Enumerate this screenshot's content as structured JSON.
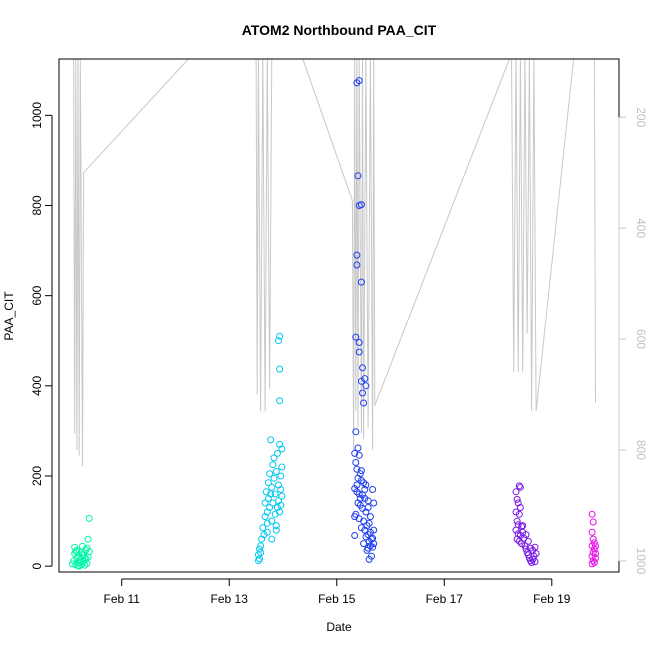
{
  "chart_data": {
    "type": "scatter",
    "title": "ATOM2 Northbound PAA_CIT",
    "xlabel": "Date",
    "ylabel": "PAA_CIT",
    "xlim": [
      "2018-02-09 20:00",
      "2018-02-20 06:00"
    ],
    "ylim": [
      -13,
      1125
    ],
    "x_ticks": [
      {
        "date": "2018-02-11",
        "label": "Feb 11"
      },
      {
        "date": "2018-02-13",
        "label": "Feb 13"
      },
      {
        "date": "2018-02-15",
        "label": "Feb 15"
      },
      {
        "date": "2018-02-17",
        "label": "Feb 17"
      },
      {
        "date": "2018-02-19",
        "label": "Feb 19"
      }
    ],
    "y_ticks": [
      0,
      200,
      400,
      600,
      800,
      1000
    ],
    "y2_ticks": [
      200,
      400,
      600,
      800,
      1000
    ],
    "y2lim_reversed": [
      1020,
      95
    ],
    "grid": false,
    "colors": {
      "axis": "#000000",
      "depth_line": "#c8c8c8",
      "depth_axis_text": "#c0c0c0"
    },
    "series": [
      {
        "color": "#00f5a8",
        "points": [
          [
            "2018-02-10 02:00",
            5
          ],
          [
            "2018-02-10 02:30",
            12
          ],
          [
            "2018-02-10 03:00",
            28
          ],
          [
            "2018-02-10 03:00",
            42
          ],
          [
            "2018-02-10 03:30",
            3
          ],
          [
            "2018-02-10 04:00",
            18
          ],
          [
            "2018-02-10 04:00",
            35
          ],
          [
            "2018-02-10 04:30",
            8
          ],
          [
            "2018-02-10 05:00",
            22
          ],
          [
            "2018-02-10 05:00",
            0
          ],
          [
            "2018-02-10 05:30",
            14
          ],
          [
            "2018-02-10 06:00",
            30
          ],
          [
            "2018-02-10 06:00",
            4
          ],
          [
            "2018-02-10 06:30",
            44
          ],
          [
            "2018-02-10 07:00",
            10
          ],
          [
            "2018-02-10 07:00",
            24
          ],
          [
            "2018-02-10 07:30",
            2
          ],
          [
            "2018-02-10 08:00",
            16
          ],
          [
            "2018-02-10 08:00",
            36
          ],
          [
            "2018-02-10 08:30",
            6
          ],
          [
            "2018-02-10 09:00",
            20
          ],
          [
            "2018-02-10 09:00",
            60
          ],
          [
            "2018-02-10 09:30",
            106
          ],
          [
            "2018-02-10 09:30",
            32
          ],
          [
            "2018-02-10 04:30",
            1
          ],
          [
            "2018-02-10 06:30",
            26
          ],
          [
            "2018-02-10 08:30",
            40
          ],
          [
            "2018-02-10 05:30",
            9
          ],
          [
            "2018-02-10 07:30",
            19
          ],
          [
            "2018-02-10 03:30",
            33
          ]
        ]
      },
      {
        "color": "#00c8f0",
        "points": [
          [
            "2018-02-13 13:00",
            12
          ],
          [
            "2018-02-13 13:00",
            25
          ],
          [
            "2018-02-13 13:30",
            38
          ],
          [
            "2018-02-13 13:30",
            16
          ],
          [
            "2018-02-13 14:00",
            45
          ],
          [
            "2018-02-13 14:00",
            30
          ],
          [
            "2018-02-13 14:30",
            60
          ],
          [
            "2018-02-13 15:00",
            85
          ],
          [
            "2018-02-13 15:30",
            70
          ],
          [
            "2018-02-13 16:00",
            110
          ],
          [
            "2018-02-13 16:00",
            140
          ],
          [
            "2018-02-13 16:30",
            165
          ],
          [
            "2018-02-13 17:00",
            95
          ],
          [
            "2018-02-13 17:00",
            120
          ],
          [
            "2018-02-13 17:30",
            150
          ],
          [
            "2018-02-13 17:30",
            185
          ],
          [
            "2018-02-13 18:00",
            205
          ],
          [
            "2018-02-13 18:00",
            130
          ],
          [
            "2018-02-13 18:30",
            280
          ],
          [
            "2018-02-13 18:30",
            160
          ],
          [
            "2018-02-13 19:00",
            100
          ],
          [
            "2018-02-13 19:00",
            175
          ],
          [
            "2018-02-13 19:30",
            225
          ],
          [
            "2018-02-13 19:30",
            140
          ],
          [
            "2018-02-13 20:00",
            195
          ],
          [
            "2018-02-13 20:00",
            240
          ],
          [
            "2018-02-13 20:30",
            115
          ],
          [
            "2018-02-13 20:30",
            160
          ],
          [
            "2018-02-13 21:00",
            210
          ],
          [
            "2018-02-13 21:00",
            90
          ],
          [
            "2018-02-13 21:30",
            130
          ],
          [
            "2018-02-13 21:30",
            250
          ],
          [
            "2018-02-13 22:00",
            180
          ],
          [
            "2018-02-13 22:00",
            145
          ],
          [
            "2018-02-13 22:30",
            270
          ],
          [
            "2018-02-13 22:30",
            120
          ],
          [
            "2018-02-13 23:00",
            200
          ],
          [
            "2018-02-13 23:00",
            170
          ],
          [
            "2018-02-13 23:00",
            135
          ],
          [
            "2018-02-13 23:30",
            260
          ],
          [
            "2018-02-13 23:30",
            220
          ],
          [
            "2018-02-13 23:30",
            155
          ],
          [
            "2018-02-13 22:30",
            437
          ],
          [
            "2018-02-13 22:00",
            500
          ],
          [
            "2018-02-13 22:30",
            367
          ],
          [
            "2018-02-13 22:30",
            510
          ],
          [
            "2018-02-13 17:00",
            75
          ],
          [
            "2018-02-13 19:00",
            60
          ],
          [
            "2018-02-13 21:00",
            80
          ]
        ]
      },
      {
        "color": "#1f3ff0",
        "points": [
          [
            "2018-02-15 09:00",
            1072
          ],
          [
            "2018-02-15 10:00",
            1077
          ],
          [
            "2018-02-15 09:30",
            866
          ],
          [
            "2018-02-15 10:00",
            800
          ],
          [
            "2018-02-15 11:00",
            802
          ],
          [
            "2018-02-15 09:00",
            690
          ],
          [
            "2018-02-15 09:00",
            668
          ],
          [
            "2018-02-15 11:00",
            630
          ],
          [
            "2018-02-15 08:30",
            508
          ],
          [
            "2018-02-15 10:00",
            496
          ],
          [
            "2018-02-15 10:00",
            475
          ],
          [
            "2018-02-15 11:30",
            440
          ],
          [
            "2018-02-15 12:30",
            416
          ],
          [
            "2018-02-15 11:00",
            410
          ],
          [
            "2018-02-15 13:00",
            400
          ],
          [
            "2018-02-15 11:30",
            384
          ],
          [
            "2018-02-15 12:00",
            362
          ],
          [
            "2018-02-15 08:30",
            298
          ],
          [
            "2018-02-15 09:30",
            262
          ],
          [
            "2018-02-15 08:00",
            250
          ],
          [
            "2018-02-15 10:00",
            246
          ],
          [
            "2018-02-15 08:30",
            230
          ],
          [
            "2018-02-15 09:00",
            215
          ],
          [
            "2018-02-15 10:30",
            205
          ],
          [
            "2018-02-15 09:30",
            195
          ],
          [
            "2018-02-15 11:00",
            190
          ],
          [
            "2018-02-15 12:00",
            185
          ],
          [
            "2018-02-15 13:00",
            180
          ],
          [
            "2018-02-15 08:00",
            172
          ],
          [
            "2018-02-15 09:00",
            165
          ],
          [
            "2018-02-15 10:00",
            160
          ],
          [
            "2018-02-15 11:30",
            158
          ],
          [
            "2018-02-15 12:30",
            150
          ],
          [
            "2018-02-15 14:00",
            145
          ],
          [
            "2018-02-15 09:30",
            140
          ],
          [
            "2018-02-15 10:30",
            135
          ],
          [
            "2018-02-15 11:30",
            128
          ],
          [
            "2018-02-15 13:00",
            120
          ],
          [
            "2018-02-15 08:30",
            115
          ],
          [
            "2018-02-15 08:00",
            110
          ],
          [
            "2018-02-15 10:00",
            105
          ],
          [
            "2018-02-15 12:00",
            100
          ],
          [
            "2018-02-15 14:30",
            95
          ],
          [
            "2018-02-15 13:30",
            90
          ],
          [
            "2018-02-15 11:00",
            85
          ],
          [
            "2018-02-15 12:30",
            80
          ],
          [
            "2018-02-15 15:00",
            75
          ],
          [
            "2018-02-15 14:00",
            70
          ],
          [
            "2018-02-15 13:00",
            65
          ],
          [
            "2018-02-15 15:30",
            60
          ],
          [
            "2018-02-15 14:30",
            55
          ],
          [
            "2018-02-15 12:00",
            50
          ],
          [
            "2018-02-15 15:00",
            45
          ],
          [
            "2018-02-15 14:00",
            40
          ],
          [
            "2018-02-15 13:30",
            35
          ],
          [
            "2018-02-15 16:00",
            42
          ],
          [
            "2018-02-15 16:00",
            62
          ],
          [
            "2018-02-15 16:30",
            80
          ],
          [
            "2018-02-15 16:30",
            50
          ],
          [
            "2018-02-15 08:00",
            68
          ],
          [
            "2018-02-15 14:30",
            15
          ],
          [
            "2018-02-15 15:30",
            22
          ],
          [
            "2018-02-15 16:00",
            170
          ],
          [
            "2018-02-15 16:30",
            140
          ],
          [
            "2018-02-15 15:00",
            110
          ],
          [
            "2018-02-15 14:00",
            130
          ],
          [
            "2018-02-15 09:00",
            180
          ],
          [
            "2018-02-15 11:00",
            212
          ],
          [
            "2018-02-15 12:30",
            170
          ],
          [
            "2018-02-15 10:30",
            150
          ]
        ]
      },
      {
        "color": "#7a18e8",
        "points": [
          [
            "2018-02-18 08:00",
            165
          ],
          [
            "2018-02-18 09:30",
            178
          ],
          [
            "2018-02-18 10:00",
            175
          ],
          [
            "2018-02-18 08:30",
            148
          ],
          [
            "2018-02-18 09:00",
            140
          ],
          [
            "2018-02-18 10:00",
            130
          ],
          [
            "2018-02-18 08:00",
            120
          ],
          [
            "2018-02-18 09:30",
            115
          ],
          [
            "2018-02-18 08:30",
            100
          ],
          [
            "2018-02-18 09:00",
            92
          ],
          [
            "2018-02-18 10:30",
            88
          ],
          [
            "2018-02-18 08:00",
            80
          ],
          [
            "2018-02-18 09:00",
            72
          ],
          [
            "2018-02-18 10:00",
            68
          ],
          [
            "2018-02-18 11:00",
            75
          ],
          [
            "2018-02-18 08:30",
            60
          ],
          [
            "2018-02-18 09:30",
            55
          ],
          [
            "2018-02-18 10:30",
            50
          ],
          [
            "2018-02-18 11:30",
            62
          ],
          [
            "2018-02-18 12:00",
            45
          ],
          [
            "2018-02-18 12:30",
            38
          ],
          [
            "2018-02-18 13:00",
            30
          ],
          [
            "2018-02-18 13:30",
            25
          ],
          [
            "2018-02-18 14:00",
            18
          ],
          [
            "2018-02-18 14:30",
            12
          ],
          [
            "2018-02-18 15:00",
            8
          ],
          [
            "2018-02-18 15:30",
            15
          ],
          [
            "2018-02-18 16:00",
            22
          ],
          [
            "2018-02-18 16:30",
            10
          ],
          [
            "2018-02-18 17:00",
            28
          ],
          [
            "2018-02-18 12:30",
            70
          ],
          [
            "2018-02-18 13:30",
            55
          ],
          [
            "2018-02-18 14:30",
            40
          ],
          [
            "2018-02-18 15:30",
            35
          ],
          [
            "2018-02-18 16:30",
            42
          ],
          [
            "2018-02-18 11:00",
            90
          ]
        ]
      },
      {
        "color": "#e810e8",
        "points": [
          [
            "2018-02-19 18:00",
            115
          ],
          [
            "2018-02-19 18:30",
            98
          ],
          [
            "2018-02-19 18:00",
            75
          ],
          [
            "2018-02-19 18:30",
            60
          ],
          [
            "2018-02-19 19:00",
            52
          ],
          [
            "2018-02-19 18:00",
            45
          ],
          [
            "2018-02-19 19:00",
            38
          ],
          [
            "2018-02-19 18:30",
            30
          ],
          [
            "2018-02-19 18:00",
            22
          ],
          [
            "2018-02-19 19:30",
            18
          ],
          [
            "2018-02-19 18:30",
            12
          ],
          [
            "2018-02-19 19:00",
            8
          ],
          [
            "2018-02-19 18:00",
            5
          ],
          [
            "2018-02-19 19:30",
            28
          ],
          [
            "2018-02-19 19:30",
            45
          ]
        ]
      }
    ],
    "depth_profile": [
      [
        "2018-02-10 02:30",
        85
      ],
      [
        "2018-02-10 03:00",
        770
      ],
      [
        "2018-02-10 03:30",
        85
      ],
      [
        "2018-02-10 04:00",
        800
      ],
      [
        "2018-02-10 04:30",
        85
      ],
      [
        "2018-02-10 05:00",
        810
      ],
      [
        "2018-02-10 05:30",
        85
      ],
      [
        "2018-02-10 06:30",
        830
      ],
      [
        "2018-02-10 07:00",
        300
      ],
      [
        "2018-02-12 08:00",
        85
      ],
      [
        "2018-02-13 12:00",
        85
      ],
      [
        "2018-02-13 12:30",
        700
      ],
      [
        "2018-02-13 13:00",
        85
      ],
      [
        "2018-02-13 14:00",
        730
      ],
      [
        "2018-02-13 15:00",
        85
      ],
      [
        "2018-02-13 16:00",
        730
      ],
      [
        "2018-02-13 17:00",
        85
      ],
      [
        "2018-02-13 18:00",
        690
      ],
      [
        "2018-02-13 19:00",
        85
      ],
      [
        "2018-02-13 20:30",
        85
      ],
      [
        "2018-02-14 08:00",
        85
      ],
      [
        "2018-02-15 07:00",
        350
      ],
      [
        "2018-02-15 07:30",
        800
      ],
      [
        "2018-02-15 08:00",
        85
      ],
      [
        "2018-02-15 08:30",
        730
      ],
      [
        "2018-02-15 09:00",
        85
      ],
      [
        "2018-02-15 09:30",
        760
      ],
      [
        "2018-02-15 10:00",
        85
      ],
      [
        "2018-02-15 11:00",
        770
      ],
      [
        "2018-02-15 11:30",
        85
      ],
      [
        "2018-02-15 12:00",
        780
      ],
      [
        "2018-02-15 13:00",
        85
      ],
      [
        "2018-02-15 14:00",
        760
      ],
      [
        "2018-02-15 15:00",
        85
      ],
      [
        "2018-02-15 16:00",
        800
      ],
      [
        "2018-02-15 16:30",
        85
      ],
      [
        "2018-02-15 17:00",
        720
      ],
      [
        "2018-02-18 06:00",
        85
      ],
      [
        "2018-02-18 07:00",
        660
      ],
      [
        "2018-02-18 08:00",
        85
      ],
      [
        "2018-02-18 09:00",
        660
      ],
      [
        "2018-02-18 10:00",
        85
      ],
      [
        "2018-02-18 11:00",
        660
      ],
      [
        "2018-02-18 12:00",
        85
      ],
      [
        "2018-02-18 13:00",
        590
      ],
      [
        "2018-02-18 14:00",
        85
      ],
      [
        "2018-02-18 15:00",
        730
      ],
      [
        "2018-02-18 16:00",
        85
      ],
      [
        "2018-02-18 17:00",
        730
      ],
      [
        "2018-02-19 10:00",
        85
      ],
      [
        "2018-02-19 19:00",
        85
      ],
      [
        "2018-02-19 19:30",
        715
      ]
    ]
  }
}
